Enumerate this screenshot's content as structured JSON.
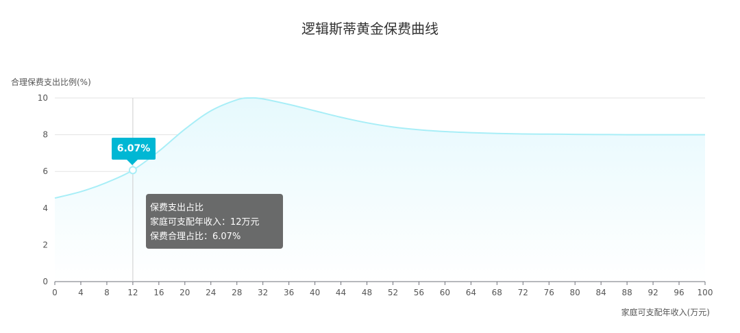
{
  "chart_data": {
    "type": "area",
    "title": "逻辑斯蒂黄金保费曲线",
    "xlabel": "家庭可支配年收入(万元)",
    "ylabel": "合理保费支出比例(%)",
    "xlim": [
      0,
      100
    ],
    "ylim": [
      0,
      10
    ],
    "x_ticks": [
      0,
      4,
      8,
      12,
      16,
      20,
      24,
      28,
      32,
      36,
      40,
      44,
      48,
      52,
      56,
      60,
      64,
      68,
      72,
      76,
      80,
      84,
      88,
      92,
      96,
      100
    ],
    "y_ticks": [
      0,
      2,
      4,
      6,
      8,
      10
    ],
    "grid": true,
    "series": [
      {
        "x": [
          0,
          4,
          8,
          12,
          16,
          20,
          24,
          28,
          30,
          32,
          36,
          40,
          44,
          48,
          52,
          56,
          60,
          64,
          68,
          72,
          76,
          80,
          84,
          88,
          92,
          96,
          100
        ],
        "values": [
          4.55,
          4.9,
          5.4,
          6.07,
          7.1,
          8.3,
          9.3,
          9.9,
          10.0,
          9.95,
          9.65,
          9.3,
          8.95,
          8.65,
          8.42,
          8.27,
          8.17,
          8.11,
          8.07,
          8.04,
          8.03,
          8.02,
          8.01,
          8.0,
          8.0,
          8.0,
          8.0
        ]
      }
    ],
    "highlight": {
      "x": 12,
      "y": 6.07,
      "label": "6.07%"
    },
    "tooltip": {
      "title": "保费支出占比",
      "line1": "家庭可支配年收入：12万元",
      "line2": "保费合理占比：6.07%"
    },
    "colors": {
      "line": "#a8eef7",
      "area_top": "#e8f9fc",
      "highlight": "#00b7d4"
    }
  }
}
